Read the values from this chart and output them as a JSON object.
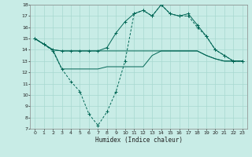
{
  "xlabel": "Humidex (Indice chaleur)",
  "bg_color": "#c8ece6",
  "grid_color": "#a8d8d0",
  "line_color": "#006655",
  "ylim": [
    7,
    18
  ],
  "xlim": [
    -0.5,
    23.5
  ],
  "yticks": [
    7,
    8,
    9,
    10,
    11,
    12,
    13,
    14,
    15,
    16,
    17,
    18
  ],
  "xticks": [
    0,
    1,
    2,
    3,
    4,
    5,
    6,
    7,
    8,
    9,
    10,
    11,
    12,
    13,
    14,
    15,
    16,
    17,
    18,
    19,
    20,
    21,
    22,
    23
  ],
  "line1_x": [
    0,
    1,
    2,
    3,
    4,
    5,
    6,
    7,
    8,
    9,
    10,
    11,
    12,
    13,
    14,
    15,
    16,
    17,
    18,
    19,
    20,
    21,
    22,
    23
  ],
  "line1_y": [
    15,
    14.5,
    14,
    13.9,
    13.9,
    13.9,
    13.9,
    13.9,
    13.9,
    13.9,
    13.9,
    13.9,
    13.9,
    13.9,
    13.9,
    13.9,
    13.9,
    13.9,
    13.9,
    13.5,
    13.2,
    13.0,
    13.0,
    13.0
  ],
  "line2_x": [
    0,
    1,
    2,
    3,
    4,
    5,
    6,
    7,
    8,
    9,
    10,
    11,
    12,
    13,
    14,
    15,
    16,
    17,
    18,
    19,
    20,
    21,
    22,
    23
  ],
  "line2_y": [
    15,
    14.5,
    14,
    13.9,
    13.9,
    13.9,
    13.9,
    13.9,
    14.2,
    15.5,
    16.5,
    17.2,
    17.5,
    17.0,
    18.0,
    17.2,
    17.0,
    17.2,
    16.2,
    15.2,
    14.0,
    13.5,
    13.0,
    13.0
  ],
  "line3_x": [
    0,
    1,
    2,
    3,
    4,
    5,
    6,
    7,
    8,
    9,
    10,
    11,
    12,
    13,
    14,
    15,
    16,
    17,
    18,
    19,
    20,
    21,
    22,
    23
  ],
  "line3_y": [
    15,
    14.5,
    13.9,
    12.3,
    11.2,
    10.3,
    8.3,
    7.3,
    8.5,
    10.3,
    13.0,
    17.2,
    17.5,
    17.0,
    18.0,
    17.2,
    17.0,
    17.0,
    16.0,
    15.2,
    14.0,
    13.5,
    13.0,
    13.0
  ],
  "line4_x": [
    0,
    1,
    2,
    3,
    4,
    5,
    6,
    7,
    8,
    9,
    10,
    11,
    12,
    13,
    14,
    15,
    16,
    17,
    18,
    19,
    20,
    21,
    22,
    23
  ],
  "line4_y": [
    15,
    14.5,
    14,
    12.3,
    12.3,
    12.3,
    12.3,
    12.3,
    12.5,
    12.5,
    12.5,
    12.5,
    12.5,
    13.5,
    13.9,
    13.9,
    13.9,
    13.9,
    13.9,
    13.5,
    13.2,
    13.0,
    13.0,
    13.0
  ]
}
